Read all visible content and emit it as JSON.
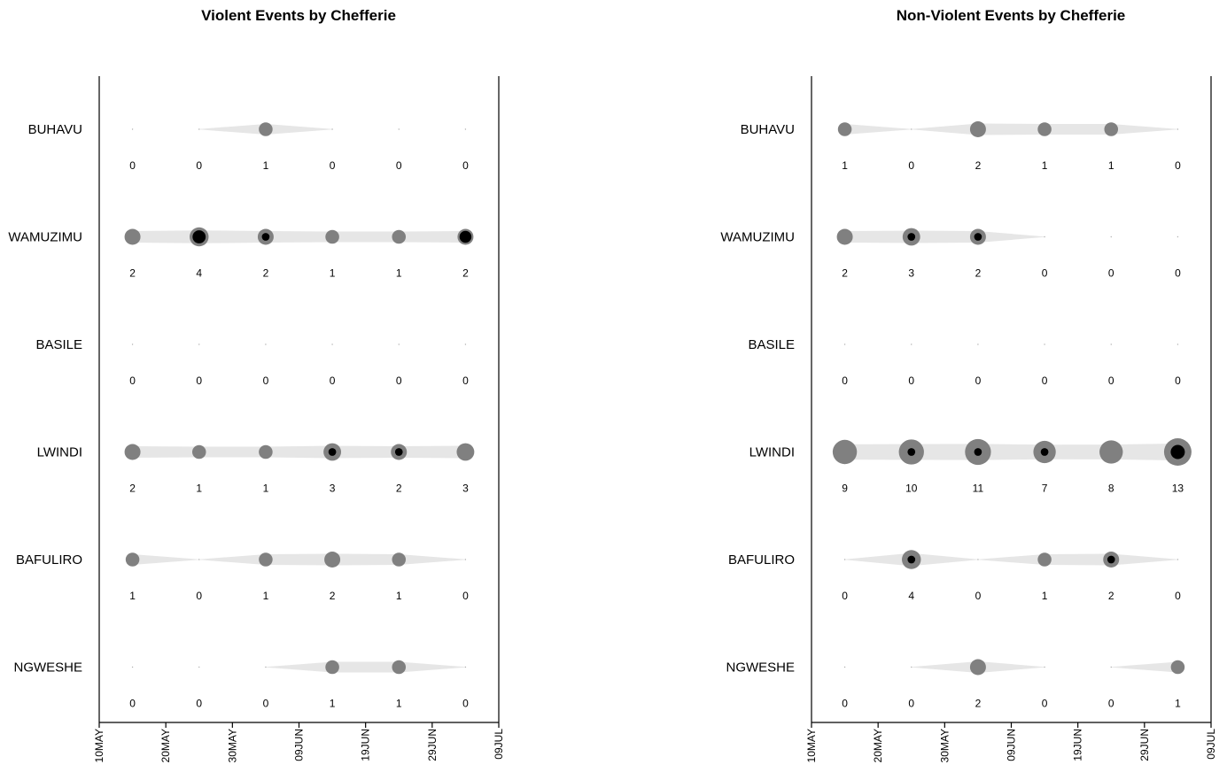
{
  "chart_data": [
    {
      "type": "scatter",
      "title": "Violent Events by Chefferie",
      "x_tick_labels": [
        "10MAY",
        "20MAY",
        "30MAY",
        "09JUN",
        "19JUN",
        "29JUN",
        "09JUL"
      ],
      "periods": [
        "15MAY",
        "25MAY",
        "04JUN",
        "14JUN",
        "24JUN",
        "04JUL"
      ],
      "rows": [
        {
          "name": "BUHAVU",
          "counts": [
            0,
            0,
            1,
            0,
            0,
            0
          ],
          "inner": [
            0,
            0,
            0,
            0,
            0,
            0
          ]
        },
        {
          "name": "WAMUZIMU",
          "counts": [
            2,
            4,
            2,
            1,
            1,
            2
          ],
          "inner": [
            0,
            3,
            1,
            0,
            0,
            2
          ]
        },
        {
          "name": "BASILE",
          "counts": [
            0,
            0,
            0,
            0,
            0,
            0
          ],
          "inner": [
            0,
            0,
            0,
            0,
            0,
            0
          ]
        },
        {
          "name": "LWINDI",
          "counts": [
            2,
            1,
            1,
            3,
            2,
            3
          ],
          "inner": [
            0,
            0,
            0,
            1,
            1,
            0
          ]
        },
        {
          "name": "BAFULIRO",
          "counts": [
            1,
            0,
            1,
            2,
            1,
            0
          ],
          "inner": [
            0,
            0,
            0,
            0,
            0,
            0
          ]
        },
        {
          "name": "NGWESHE",
          "counts": [
            0,
            0,
            0,
            1,
            1,
            0
          ],
          "inner": [
            0,
            0,
            0,
            0,
            0,
            0
          ]
        }
      ]
    },
    {
      "type": "scatter",
      "title": "Non-Violent Events by Chefferie",
      "x_tick_labels": [
        "10MAY",
        "20MAY",
        "30MAY",
        "09JUN",
        "19JUN",
        "29JUN",
        "09JUL"
      ],
      "periods": [
        "15MAY",
        "25MAY",
        "04JUN",
        "14JUN",
        "24JUN",
        "04JUL"
      ],
      "rows": [
        {
          "name": "BUHAVU",
          "counts": [
            1,
            0,
            2,
            1,
            1,
            0
          ],
          "inner": [
            0,
            0,
            0,
            0,
            0,
            0
          ]
        },
        {
          "name": "WAMUZIMU",
          "counts": [
            2,
            3,
            2,
            0,
            0,
            0
          ],
          "inner": [
            0,
            1,
            1,
            0,
            0,
            0
          ]
        },
        {
          "name": "BASILE",
          "counts": [
            0,
            0,
            0,
            0,
            0,
            0
          ],
          "inner": [
            0,
            0,
            0,
            0,
            0,
            0
          ]
        },
        {
          "name": "LWINDI",
          "counts": [
            9,
            10,
            11,
            7,
            8,
            13
          ],
          "inner": [
            0,
            1,
            1,
            1,
            0,
            4
          ]
        },
        {
          "name": "BAFULIRO",
          "counts": [
            0,
            4,
            0,
            1,
            2,
            0
          ],
          "inner": [
            0,
            1,
            0,
            0,
            1,
            0
          ]
        },
        {
          "name": "NGWESHE",
          "counts": [
            0,
            0,
            2,
            0,
            0,
            1
          ],
          "inner": [
            0,
            0,
            0,
            0,
            0,
            0
          ]
        }
      ]
    }
  ],
  "colors": {
    "band": "#e6e6e6",
    "outer_bubble": "#808080",
    "inner_bubble": "#000000",
    "axis": "#000000"
  }
}
